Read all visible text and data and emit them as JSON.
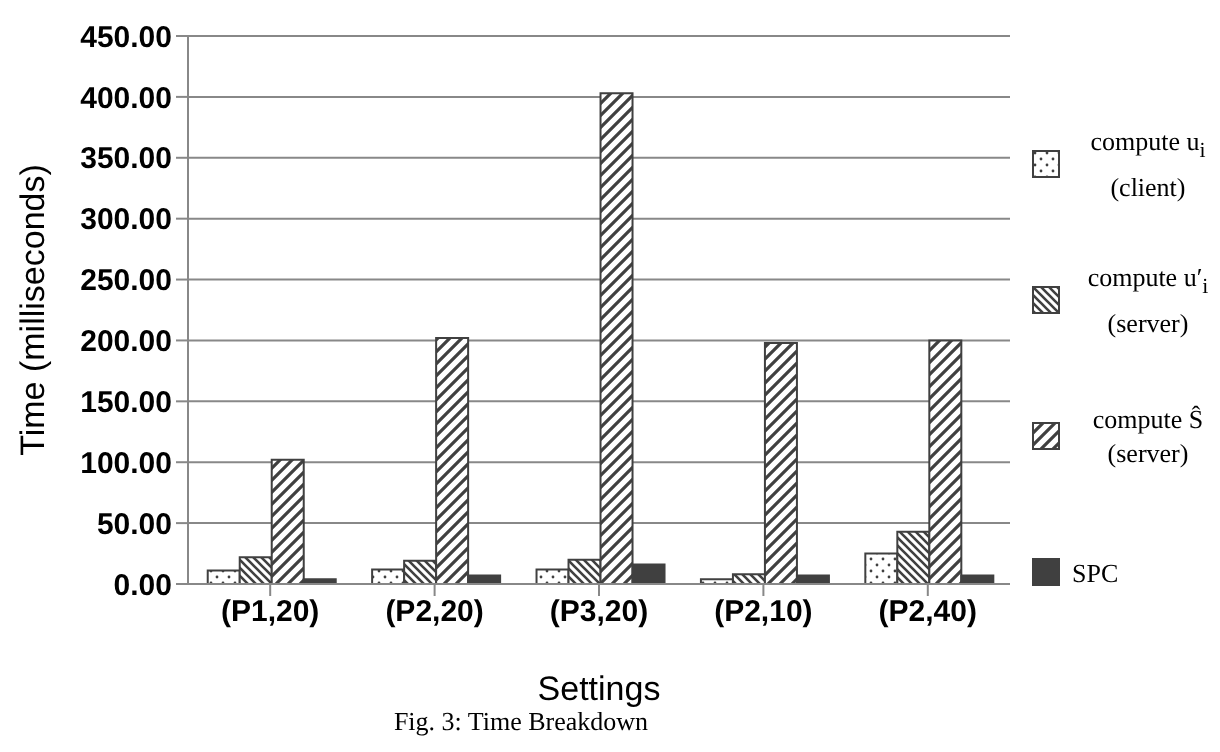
{
  "chart_data": {
    "type": "bar",
    "title": "Fig. 3: Time Breakdown",
    "xlabel": "Settings",
    "ylabel": "Time (milliseconds)",
    "categories": [
      "(P1,20)",
      "(P2,20)",
      "(P3,20)",
      "(P2,10)",
      "(P2,40)"
    ],
    "series": [
      {
        "name": "compute u$_{i}$ (client)",
        "color": "#404040",
        "values": [
          11,
          12,
          12,
          4,
          25
        ]
      },
      {
        "name": "compute u′$_{i}$ (server)",
        "color": "#404040",
        "values": [
          22,
          19,
          20,
          8,
          43
        ]
      },
      {
        "name": "compute Ŝ (server)",
        "color": "#404040",
        "values": [
          102,
          202,
          403,
          198,
          200
        ]
      },
      {
        "name": "SPC",
        "color": "#404040",
        "values": [
          4,
          7,
          16,
          7,
          7
        ]
      }
    ],
    "ylim": [
      0,
      450
    ],
    "yticks": [
      {
        "value": 0,
        "label": "0.00"
      },
      {
        "value": 50,
        "label": "50.00"
      },
      {
        "value": 100,
        "label": "100.00"
      },
      {
        "value": 150,
        "label": "150.00"
      },
      {
        "value": 200,
        "label": "200.00"
      },
      {
        "value": 250,
        "label": "250.00"
      },
      {
        "value": 300,
        "label": "300.00"
      },
      {
        "value": 350,
        "label": "350.00"
      },
      {
        "value": 400,
        "label": "400.00"
      },
      {
        "value": 450,
        "label": "450.00"
      }
    ],
    "grid": "y",
    "legend": "right"
  }
}
